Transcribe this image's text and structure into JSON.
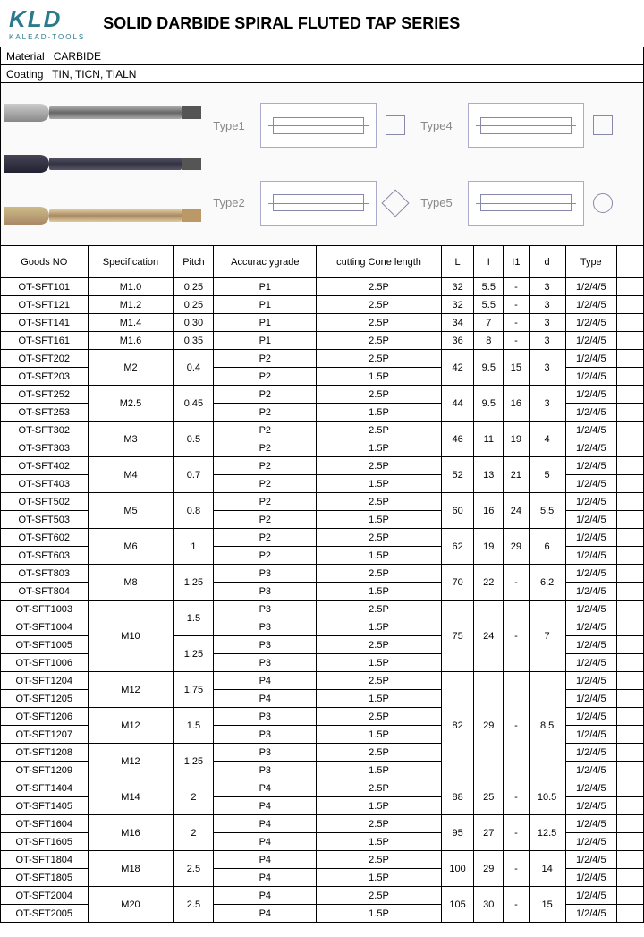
{
  "logo": {
    "main": "KLD",
    "sub": "KALEAD-TOOLS"
  },
  "title": "SOLID DARBIDE SPIRAL FLUTED TAP SERIES",
  "material_label": "Material",
  "material_value": "CARBIDE",
  "coating_label": "Coating",
  "coating_value": "TIN,  TICN,  TIALN",
  "type_labels": [
    "Type1",
    "Type4",
    "Type2",
    "Type5"
  ],
  "headers": {
    "goods": "Goods NO",
    "spec": "Specification",
    "pitch": "Pitch",
    "acc": "Accurac ygrade",
    "cone": "cutting Cone length",
    "L": "L",
    "I": "I",
    "I1": "I1",
    "d": "d",
    "type": "Type",
    "blank": ""
  },
  "rows": [
    {
      "goods": "OT-SFT101",
      "spec": "M1.0",
      "pitch": "0.25",
      "acc": "P1",
      "cone": "2.5P",
      "L": "32",
      "I": "5.5",
      "I1": "-",
      "d": "3",
      "type": "1/2/4/5"
    },
    {
      "goods": "OT-SFT121",
      "spec": "M1.2",
      "pitch": "0.25",
      "acc": "P1",
      "cone": "2.5P",
      "L": "32",
      "I": "5.5",
      "I1": "-",
      "d": "3",
      "type": "1/2/4/5"
    },
    {
      "goods": "OT-SFT141",
      "spec": "M1.4",
      "pitch": "0.30",
      "acc": "P1",
      "cone": "2.5P",
      "L": "34",
      "I": "7",
      "I1": "-",
      "d": "3",
      "type": "1/2/4/5"
    },
    {
      "goods": "OT-SFT161",
      "spec": "M1.6",
      "pitch": "0.35",
      "acc": "P1",
      "cone": "2.5P",
      "L": "36",
      "I": "8",
      "I1": "-",
      "d": "3",
      "type": "1/2/4/5"
    }
  ],
  "groups": [
    {
      "goods": [
        "OT-SFT202",
        "OT-SFT203"
      ],
      "spec": "M2",
      "pitch": "0.4",
      "acc": [
        "P2",
        "P2"
      ],
      "cone": [
        "2.5P",
        "1.5P"
      ],
      "L": "42",
      "I": "9.5",
      "I1": "15",
      "d": "3",
      "type": [
        "1/2/4/5",
        "1/2/4/5"
      ]
    },
    {
      "goods": [
        "OT-SFT252",
        "OT-SFT253"
      ],
      "spec": "M2.5",
      "pitch": "0.45",
      "acc": [
        "P2",
        "P2"
      ],
      "cone": [
        "2.5P",
        "1.5P"
      ],
      "L": "44",
      "I": "9.5",
      "I1": "16",
      "d": "3",
      "type": [
        "1/2/4/5",
        "1/2/4/5"
      ]
    },
    {
      "goods": [
        "OT-SFT302",
        "OT-SFT303"
      ],
      "spec": "M3",
      "pitch": "0.5",
      "acc": [
        "P2",
        "P2"
      ],
      "cone": [
        "2.5P",
        "1.5P"
      ],
      "L": "46",
      "I": "11",
      "I1": "19",
      "d": "4",
      "type": [
        "1/2/4/5",
        "1/2/4/5"
      ]
    },
    {
      "goods": [
        "OT-SFT402",
        "OT-SFT403"
      ],
      "spec": "M4",
      "pitch": "0.7",
      "acc": [
        "P2",
        "P2"
      ],
      "cone": [
        "2.5P",
        "1.5P"
      ],
      "L": "52",
      "I": "13",
      "I1": "21",
      "d": "5",
      "type": [
        "1/2/4/5",
        "1/2/4/5"
      ]
    },
    {
      "goods": [
        "OT-SFT502",
        "OT-SFT503"
      ],
      "spec": "M5",
      "pitch": "0.8",
      "acc": [
        "P2",
        "P2"
      ],
      "cone": [
        "2.5P",
        "1.5P"
      ],
      "L": "60",
      "I": "16",
      "I1": "24",
      "d": "5.5",
      "type": [
        "1/2/4/5",
        "1/2/4/5"
      ]
    },
    {
      "goods": [
        "OT-SFT602",
        "OT-SFT603"
      ],
      "spec": "M6",
      "pitch": "1",
      "acc": [
        "P2",
        "P2"
      ],
      "cone": [
        "2.5P",
        "1.5P"
      ],
      "L": "62",
      "I": "19",
      "I1": "29",
      "d": "6",
      "type": [
        "1/2/4/5",
        "1/2/4/5"
      ]
    },
    {
      "goods": [
        "OT-SFT803",
        "OT-SFT804"
      ],
      "spec": "M8",
      "pitch": "1.25",
      "acc": [
        "P3",
        "P3"
      ],
      "cone": [
        "2.5P",
        "1.5P"
      ],
      "L": "70",
      "I": "22",
      "I1": "-",
      "d": "6.2",
      "type": [
        "1/2/4/5",
        "1/2/4/5"
      ]
    }
  ],
  "m10": {
    "goods": [
      "OT-SFT1003",
      "OT-SFT1004",
      "OT-SFT1005",
      "OT-SFT1006"
    ],
    "spec": "M10",
    "pitch": [
      "1.5",
      "1.25"
    ],
    "acc": [
      "P3",
      "P3",
      "P3",
      "P3"
    ],
    "cone": [
      "2.5P",
      "1.5P",
      "2.5P",
      "1.5P"
    ],
    "L": "75",
    "I": "24",
    "I1": "-",
    "d": "7",
    "type": "1/2/4/5"
  },
  "m12": {
    "goods": [
      "OT-SFT1204",
      "OT-SFT1205",
      "OT-SFT1206",
      "OT-SFT1207",
      "OT-SFT1208",
      "OT-SFT1209"
    ],
    "spec": [
      "M12",
      "M12",
      "M12"
    ],
    "pitch": [
      "1.75",
      "1.5",
      "1.25"
    ],
    "acc": [
      "P4",
      "P4",
      "P3",
      "P3",
      "P3",
      "P3"
    ],
    "cone": [
      "2.5P",
      "1.5P",
      "2.5P",
      "1.5P",
      "2.5P",
      "1.5P"
    ],
    "L": "82",
    "I": "29",
    "I1": "-",
    "d": "8.5",
    "type": "1/2/4/5"
  },
  "final_groups": [
    {
      "goods": [
        "OT-SFT1404",
        "OT-SFT1405"
      ],
      "spec": "M14",
      "pitch": "2",
      "acc": [
        "P4",
        "P4"
      ],
      "cone": [
        "2.5P",
        "1.5P"
      ],
      "L": "88",
      "I": "25",
      "I1": "-",
      "d": "10.5",
      "type": [
        "1/2/4/5",
        "1/2/4/5"
      ]
    },
    {
      "goods": [
        "OT-SFT1604",
        "OT-SFT1605"
      ],
      "spec": "M16",
      "pitch": "2",
      "acc": [
        "P4",
        "P4"
      ],
      "cone": [
        "2.5P",
        "1.5P"
      ],
      "L": "95",
      "I": "27",
      "I1": "-",
      "d": "12.5",
      "type": [
        "1/2/4/5",
        "1/2/4/5"
      ]
    },
    {
      "goods": [
        "OT-SFT1804",
        "OT-SFT1805"
      ],
      "spec": "M18",
      "pitch": "2.5",
      "acc": [
        "P4",
        "P4"
      ],
      "cone": [
        "2.5P",
        "1.5P"
      ],
      "L": "100",
      "I": "29",
      "I1": "-",
      "d": "14",
      "type": [
        "1/2/4/5",
        "1/2/4/5"
      ]
    },
    {
      "goods": [
        "OT-SFT2004",
        "OT-SFT2005"
      ],
      "spec": "M20",
      "pitch": "2.5",
      "acc": [
        "P4",
        "P4"
      ],
      "cone": [
        "2.5P",
        "1.5P"
      ],
      "L": "105",
      "I": "30",
      "I1": "-",
      "d": "15",
      "type": [
        "1/2/4/5",
        "1/2/4/5"
      ]
    }
  ]
}
